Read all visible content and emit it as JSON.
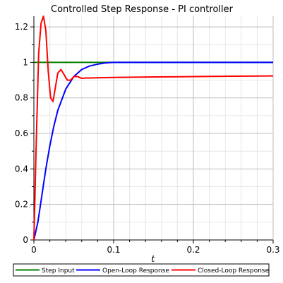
{
  "chart_data": {
    "type": "line",
    "title": "Controlled Step Response - PI controller",
    "xlabel": "t",
    "ylabel": "",
    "xlim": [
      0,
      0.3
    ],
    "ylim": [
      0,
      1.26
    ],
    "grid": true,
    "legend_position": "bottom",
    "x_ticks": [
      0,
      0.1,
      0.2,
      0.3
    ],
    "x_tick_labels": [
      "0",
      "0.1",
      "0.2",
      "0.3"
    ],
    "y_ticks": [
      0,
      0.2,
      0.4,
      0.6,
      0.8,
      1,
      1.2
    ],
    "y_tick_labels": [
      "0",
      "0.2",
      "0.4",
      "0.6",
      "0.8",
      "1",
      "1.2"
    ],
    "series": [
      {
        "name": "Step Input",
        "color": "#008000",
        "x": [
          0,
          0.3
        ],
        "y": [
          1,
          1
        ]
      },
      {
        "name": "Open-Loop Response",
        "color": "#0000ff",
        "x": [
          0,
          0.005,
          0.01,
          0.015,
          0.02,
          0.025,
          0.03,
          0.04,
          0.05,
          0.06,
          0.07,
          0.08,
          0.09,
          0.1,
          0.15,
          0.2,
          0.25,
          0.3
        ],
        "y": [
          0,
          0.1,
          0.25,
          0.4,
          0.53,
          0.64,
          0.73,
          0.85,
          0.92,
          0.96,
          0.98,
          0.99,
          0.997,
          1.0,
          1.0,
          1.0,
          1.0,
          1.0
        ]
      },
      {
        "name": "Closed-Loop Response",
        "color": "#ff0000",
        "x": [
          0,
          0.003,
          0.006,
          0.009,
          0.012,
          0.015,
          0.018,
          0.021,
          0.024,
          0.027,
          0.03,
          0.034,
          0.038,
          0.042,
          0.046,
          0.05,
          0.055,
          0.06,
          0.065,
          0.07,
          0.08,
          0.09,
          0.1,
          0.15,
          0.2,
          0.25,
          0.3
        ],
        "y": [
          0,
          0.55,
          1.05,
          1.22,
          1.26,
          1.18,
          0.95,
          0.8,
          0.78,
          0.86,
          0.94,
          0.96,
          0.93,
          0.9,
          0.9,
          0.92,
          0.92,
          0.91,
          0.912,
          0.912,
          0.913,
          0.914,
          0.915,
          0.918,
          0.92,
          0.922,
          0.924
        ]
      }
    ]
  }
}
